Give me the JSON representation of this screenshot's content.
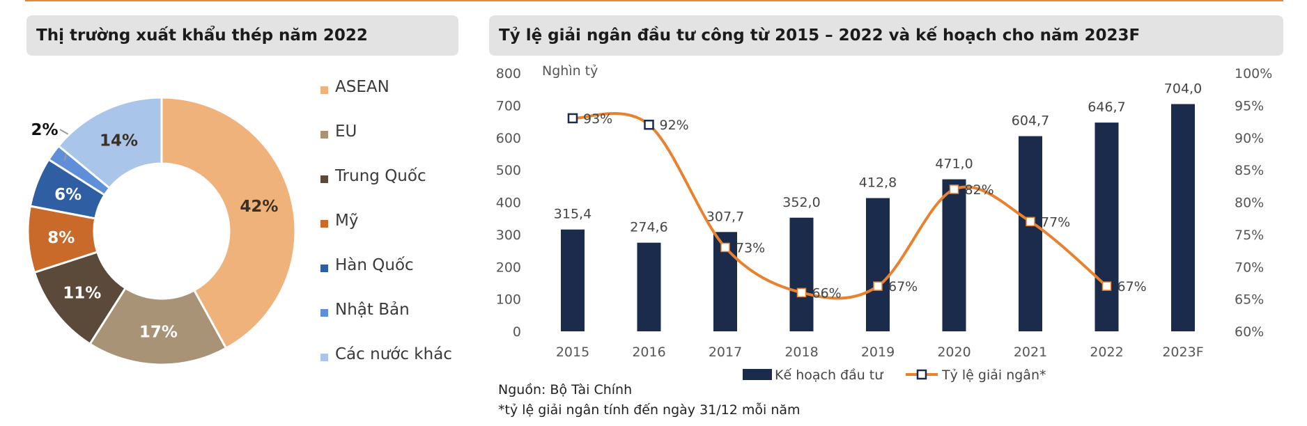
{
  "panels": {
    "left_title": "Thị trường xuất khẩu thép năm 2022",
    "right_title": "Tỷ lệ giải ngân đầu tư công từ 2015 – 2022 và kế hoạch cho năm 2023F"
  },
  "chart_data": [
    {
      "type": "pie",
      "title": "Thị trường xuất khẩu thép năm 2022",
      "donut": true,
      "legend_position": "right",
      "slices": [
        {
          "label": "ASEAN",
          "value": 42,
          "display": "42%",
          "color": "#eeb27a"
        },
        {
          "label": "EU",
          "value": 17,
          "display": "17%",
          "color": "#a89377"
        },
        {
          "label": "Trung Quốc",
          "value": 11,
          "display": "11%",
          "color": "#5b4a3a"
        },
        {
          "label": "Mỹ",
          "value": 8,
          "display": "8%",
          "color": "#c9692a"
        },
        {
          "label": "Hàn Quốc",
          "value": 6,
          "display": "6%",
          "color": "#2f5ea3"
        },
        {
          "label": "Nhật Bản",
          "value": 2,
          "display": "2%",
          "color": "#5f8fd9"
        },
        {
          "label": "Các nước khác",
          "value": 14,
          "display": "14%",
          "color": "#a9c6ea"
        }
      ]
    },
    {
      "type": "bar",
      "title": "Tỷ lệ giải ngân đầu tư công từ 2015 – 2022 và kế hoạch cho năm 2023F",
      "categories": [
        "2015",
        "2016",
        "2017",
        "2018",
        "2019",
        "2020",
        "2021",
        "2022",
        "2023F"
      ],
      "y_left_label": "Nghìn tỷ",
      "y_left_ticks": [
        "800",
        "700",
        "600",
        "500",
        "400",
        "300",
        "200",
        "100",
        "0"
      ],
      "y_left_lim": [
        0,
        800
      ],
      "y_right_ticks": [
        "100%",
        "95%",
        "90%",
        "85%",
        "80%",
        "75%",
        "70%",
        "65%",
        "60%"
      ],
      "y_right_lim": [
        60,
        100
      ],
      "series": [
        {
          "name": "Kế hoạch đầu tư",
          "kind": "bar",
          "axis": "left",
          "color": "#1a2b4c",
          "values": [
            315.4,
            274.6,
            307.7,
            352.0,
            412.8,
            471.0,
            604.7,
            646.7,
            704.0
          ],
          "labels": [
            "315,4",
            "274,6",
            "307,7",
            "352,0",
            "412,8",
            "471,0",
            "604,7",
            "646,7",
            "704,0"
          ]
        },
        {
          "name": "Tỷ lệ giải ngân*",
          "kind": "line",
          "axis": "right",
          "color": "#e8822f",
          "values": [
            93,
            92,
            73,
            66,
            67,
            82,
            77,
            67,
            null
          ],
          "labels": [
            "93%",
            "92%",
            "73%",
            "66%",
            "67%",
            "82%",
            "77%",
            "67%",
            ""
          ]
        }
      ],
      "legend_position": "bottom"
    }
  ],
  "source": {
    "line1": "Nguồn: Bộ Tài Chính",
    "line2": "*tỷ lệ giải ngân tính đến ngày 31/12 mỗi năm"
  }
}
